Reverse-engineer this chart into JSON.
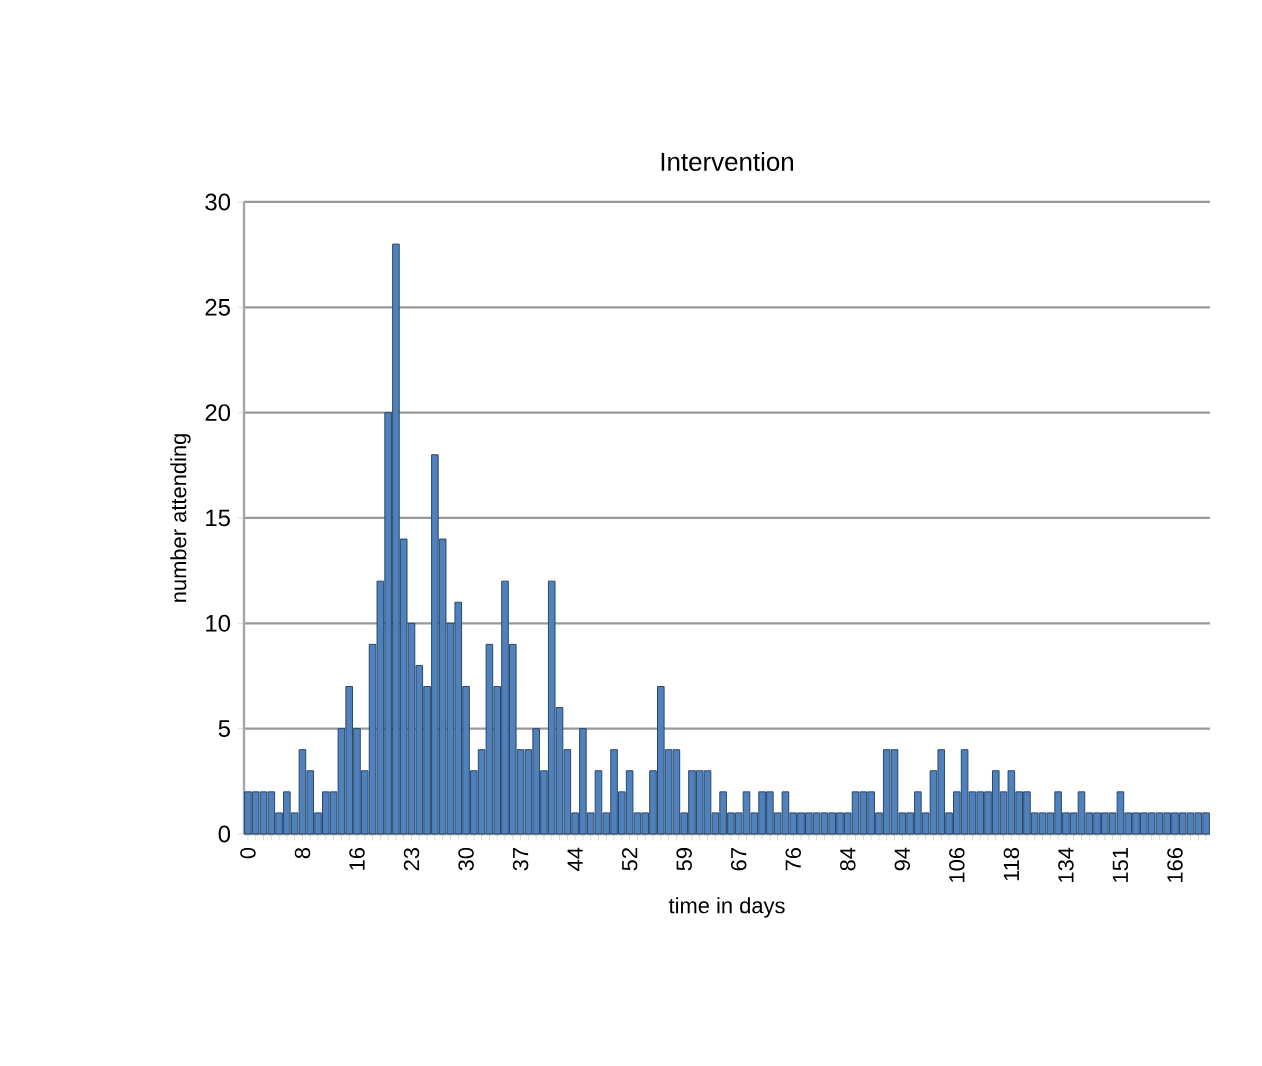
{
  "chart_data": {
    "type": "bar",
    "title": "Intervention",
    "xlabel": "time in days",
    "ylabel": "number attending",
    "categories": [
      "0",
      null,
      null,
      null,
      null,
      null,
      null,
      "8",
      null,
      null,
      null,
      null,
      null,
      null,
      "16",
      null,
      null,
      null,
      null,
      null,
      null,
      "23",
      null,
      null,
      null,
      null,
      null,
      null,
      "30",
      null,
      null,
      null,
      null,
      null,
      null,
      "37",
      null,
      null,
      null,
      null,
      null,
      null,
      "44",
      null,
      null,
      null,
      null,
      null,
      null,
      "52",
      null,
      null,
      null,
      null,
      null,
      null,
      "59",
      null,
      null,
      null,
      null,
      null,
      null,
      "67",
      null,
      null,
      null,
      null,
      null,
      null,
      "76",
      null,
      null,
      null,
      null,
      null,
      null,
      "84",
      null,
      null,
      null,
      null,
      null,
      null,
      "94",
      null,
      null,
      null,
      null,
      null,
      null,
      "106",
      null,
      null,
      null,
      null,
      null,
      null,
      "118",
      null,
      null,
      null,
      null,
      null,
      null,
      "134",
      null,
      null,
      null,
      null,
      null,
      null,
      "151",
      null,
      null,
      null,
      null,
      null,
      null,
      "166",
      null,
      null,
      null,
      null
    ],
    "values": [
      2,
      2,
      2,
      2,
      1,
      2,
      1,
      4,
      3,
      1,
      2,
      2,
      5,
      7,
      5,
      3,
      9,
      12,
      20,
      28,
      14,
      10,
      8,
      7,
      18,
      14,
      10,
      11,
      7,
      3,
      4,
      9,
      7,
      12,
      9,
      4,
      4,
      5,
      3,
      12,
      6,
      4,
      1,
      5,
      1,
      3,
      1,
      4,
      2,
      3,
      1,
      1,
      3,
      7,
      4,
      4,
      1,
      3,
      3,
      3,
      1,
      2,
      1,
      1,
      2,
      1,
      2,
      2,
      1,
      2,
      1,
      1,
      1,
      1,
      1,
      1,
      1,
      1,
      2,
      2,
      2,
      1,
      4,
      4,
      1,
      1,
      2,
      1,
      3,
      4,
      1,
      2,
      4,
      2,
      2,
      2,
      3,
      2,
      3,
      2,
      2,
      1,
      1,
      1,
      2,
      1,
      1,
      2,
      1,
      1,
      1,
      1,
      2,
      1,
      1,
      1,
      1,
      1,
      1,
      1,
      1,
      1,
      1,
      1
    ],
    "color": "#4f81bd",
    "ylim": [
      0,
      30
    ],
    "yticks": [
      0,
      5,
      10,
      15,
      20,
      25,
      30
    ],
    "grid": "y"
  }
}
